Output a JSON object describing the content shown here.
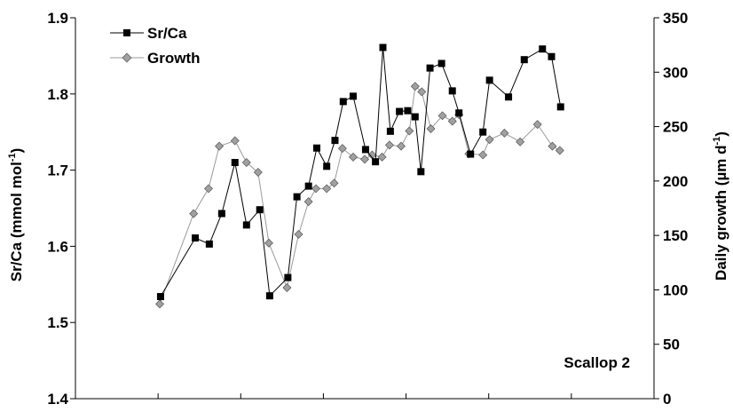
{
  "chart_data": {
    "type": "line",
    "title": "",
    "annotation": "Scallop 2",
    "y_left": {
      "label": "Sr/Ca (mmol mol",
      "label_sup": "-1",
      "label_end": ")",
      "lim": [
        1.4,
        1.9
      ],
      "ticks": [
        1.4,
        1.5,
        1.6,
        1.7,
        1.8,
        1.9
      ],
      "tick_labels": [
        "1.4",
        "1.5",
        "1.6",
        "1.7",
        "1.8",
        "1.9"
      ]
    },
    "y_right": {
      "label": "Daily growth (µm d",
      "label_sup": "-1",
      "label_end": ")",
      "lim": [
        0,
        350
      ],
      "ticks": [
        0,
        50,
        100,
        150,
        200,
        250,
        300,
        350
      ],
      "tick_labels": [
        "0",
        "50",
        "100",
        "150",
        "200",
        "250",
        "300",
        "350"
      ]
    },
    "x_axis": {
      "lim": [
        0,
        70
      ],
      "ticks": [
        10,
        20,
        30,
        40,
        50,
        60
      ],
      "tick_labels": []
    },
    "legend": {
      "placement": "top-left"
    },
    "series": [
      {
        "name": "Sr/Ca",
        "axis": "left",
        "marker": "square",
        "color": "#000000",
        "points": [
          [
            10.3,
            1.534
          ],
          [
            14.5,
            1.611
          ],
          [
            16.2,
            1.603
          ],
          [
            17.7,
            1.643
          ],
          [
            19.3,
            1.71
          ],
          [
            20.7,
            1.628
          ],
          [
            22.3,
            1.648
          ],
          [
            23.5,
            1.535
          ],
          [
            25.7,
            1.559
          ],
          [
            26.8,
            1.665
          ],
          [
            28.2,
            1.679
          ],
          [
            29.2,
            1.729
          ],
          [
            30.4,
            1.705
          ],
          [
            31.4,
            1.739
          ],
          [
            32.4,
            1.79
          ],
          [
            33.6,
            1.797
          ],
          [
            35.1,
            1.727
          ],
          [
            36.3,
            1.711
          ],
          [
            37.2,
            1.861
          ],
          [
            38.1,
            1.751
          ],
          [
            39.2,
            1.777
          ],
          [
            40.2,
            1.778
          ],
          [
            41.1,
            1.77
          ],
          [
            41.8,
            1.698
          ],
          [
            42.9,
            1.834
          ],
          [
            44.3,
            1.84
          ],
          [
            45.6,
            1.804
          ],
          [
            46.4,
            1.775
          ],
          [
            47.8,
            1.721
          ],
          [
            49.3,
            1.75
          ],
          [
            50.1,
            1.818
          ],
          [
            52.4,
            1.796
          ],
          [
            54.3,
            1.845
          ],
          [
            56.5,
            1.859
          ],
          [
            57.6,
            1.849
          ],
          [
            58.7,
            1.783
          ]
        ]
      },
      {
        "name": "Growth",
        "axis": "right",
        "marker": "diamond",
        "color": "#9a9a9a",
        "points": [
          [
            10.2,
            87
          ],
          [
            14.3,
            170
          ],
          [
            16.1,
            193
          ],
          [
            17.4,
            232
          ],
          [
            19.3,
            237
          ],
          [
            20.7,
            217
          ],
          [
            22.1,
            208
          ],
          [
            23.4,
            143
          ],
          [
            25.6,
            102
          ],
          [
            27.0,
            151
          ],
          [
            28.2,
            181
          ],
          [
            29.1,
            193
          ],
          [
            30.4,
            193
          ],
          [
            31.3,
            198
          ],
          [
            32.3,
            230
          ],
          [
            33.6,
            222
          ],
          [
            35.0,
            220
          ],
          [
            35.9,
            224
          ],
          [
            37.1,
            222
          ],
          [
            38.0,
            233
          ],
          [
            39.4,
            232
          ],
          [
            40.4,
            246
          ],
          [
            41.1,
            287
          ],
          [
            41.9,
            282
          ],
          [
            43.0,
            248
          ],
          [
            44.4,
            260
          ],
          [
            45.6,
            255
          ],
          [
            46.4,
            261
          ],
          [
            47.6,
            225
          ],
          [
            49.3,
            224
          ],
          [
            50.1,
            238
          ],
          [
            51.9,
            244
          ],
          [
            53.8,
            236
          ],
          [
            55.9,
            252
          ],
          [
            57.7,
            232
          ],
          [
            58.6,
            228
          ]
        ]
      }
    ]
  }
}
